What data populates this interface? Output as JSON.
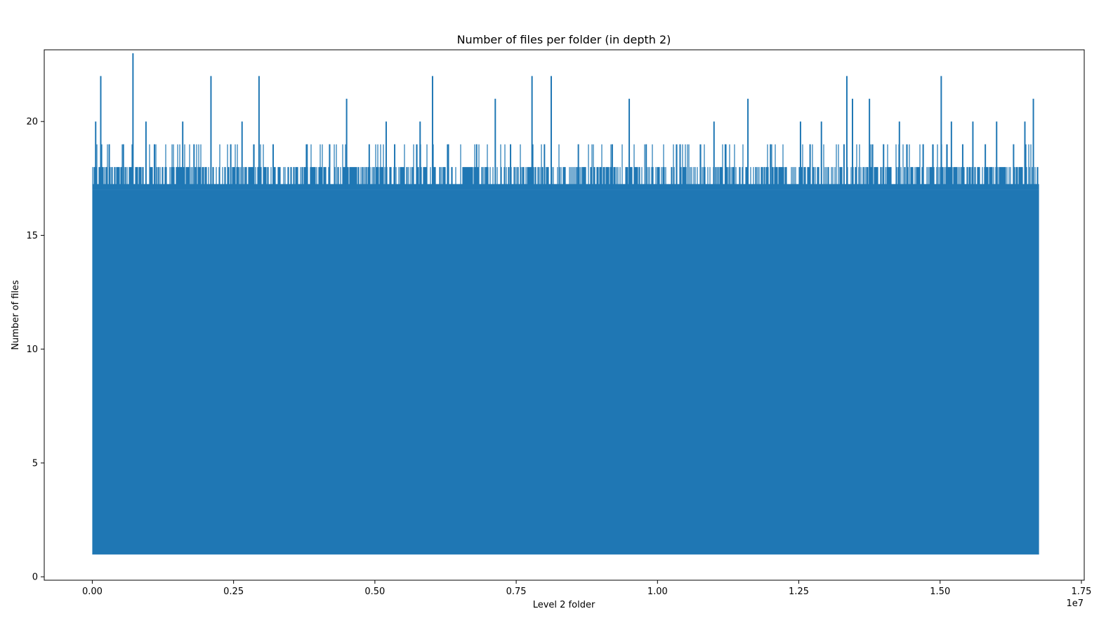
{
  "chart_data": {
    "type": "line",
    "title": "Number of files per folder (in depth 2)",
    "xlabel": "Level 2 folder",
    "ylabel": "Number of files",
    "x_offset_label": "1e7",
    "xlim": [
      -0.085,
      1.755
    ],
    "ylim": [
      -0.15,
      23.15
    ],
    "x_range": [
      0.0,
      1.675
    ],
    "xticks": [
      0.0,
      0.25,
      0.5,
      0.75,
      1.0,
      1.25,
      1.5,
      1.75
    ],
    "xtick_labels": [
      "0.00",
      "0.25",
      "0.50",
      "0.75",
      "1.00",
      "1.25",
      "1.50",
      "1.75"
    ],
    "yticks": [
      0,
      5,
      10,
      15,
      20
    ],
    "ytick_labels": [
      "0",
      "5",
      "10",
      "15",
      "20"
    ],
    "series": [
      {
        "color": "#1f77b4",
        "min_value": 1,
        "dense_band_max": 17,
        "peaks": [
          {
            "x": 0.072,
            "y": 23
          },
          {
            "x": 0.015,
            "y": 22
          },
          {
            "x": 0.21,
            "y": 22
          },
          {
            "x": 0.295,
            "y": 22
          },
          {
            "x": 0.602,
            "y": 22
          },
          {
            "x": 0.778,
            "y": 22
          },
          {
            "x": 0.812,
            "y": 22
          },
          {
            "x": 1.335,
            "y": 22
          },
          {
            "x": 1.502,
            "y": 22
          },
          {
            "x": 0.006,
            "y": 20
          },
          {
            "x": 0.095,
            "y": 20
          },
          {
            "x": 0.16,
            "y": 20
          },
          {
            "x": 0.265,
            "y": 20
          },
          {
            "x": 0.45,
            "y": 21
          },
          {
            "x": 0.52,
            "y": 20
          },
          {
            "x": 0.58,
            "y": 20
          },
          {
            "x": 0.713,
            "y": 21
          },
          {
            "x": 0.95,
            "y": 21
          },
          {
            "x": 1.1,
            "y": 20
          },
          {
            "x": 1.16,
            "y": 21
          },
          {
            "x": 1.253,
            "y": 20
          },
          {
            "x": 1.29,
            "y": 20
          },
          {
            "x": 1.345,
            "y": 21
          },
          {
            "x": 1.375,
            "y": 21
          },
          {
            "x": 1.428,
            "y": 20
          },
          {
            "x": 1.52,
            "y": 20
          },
          {
            "x": 1.558,
            "y": 20
          },
          {
            "x": 1.6,
            "y": 20
          },
          {
            "x": 1.65,
            "y": 20
          },
          {
            "x": 1.665,
            "y": 21
          },
          {
            "x": 0.03,
            "y": 19
          },
          {
            "x": 0.055,
            "y": 19
          },
          {
            "x": 0.11,
            "y": 19
          },
          {
            "x": 0.18,
            "y": 19
          },
          {
            "x": 0.245,
            "y": 19
          },
          {
            "x": 0.32,
            "y": 19
          },
          {
            "x": 0.38,
            "y": 19
          },
          {
            "x": 0.42,
            "y": 19
          },
          {
            "x": 0.49,
            "y": 19
          },
          {
            "x": 0.535,
            "y": 19
          },
          {
            "x": 0.63,
            "y": 19
          },
          {
            "x": 0.68,
            "y": 19
          },
          {
            "x": 0.74,
            "y": 19
          },
          {
            "x": 0.8,
            "y": 19
          },
          {
            "x": 0.86,
            "y": 19
          },
          {
            "x": 0.92,
            "y": 19
          },
          {
            "x": 0.98,
            "y": 19
          },
          {
            "x": 1.04,
            "y": 19
          },
          {
            "x": 1.12,
            "y": 19
          },
          {
            "x": 1.2,
            "y": 19
          },
          {
            "x": 1.27,
            "y": 19
          },
          {
            "x": 1.33,
            "y": 19
          },
          {
            "x": 1.4,
            "y": 19
          },
          {
            "x": 1.47,
            "y": 19
          },
          {
            "x": 1.54,
            "y": 19
          },
          {
            "x": 1.58,
            "y": 19
          },
          {
            "x": 1.63,
            "y": 19
          }
        ]
      }
    ],
    "grid": false,
    "legend": "none"
  }
}
